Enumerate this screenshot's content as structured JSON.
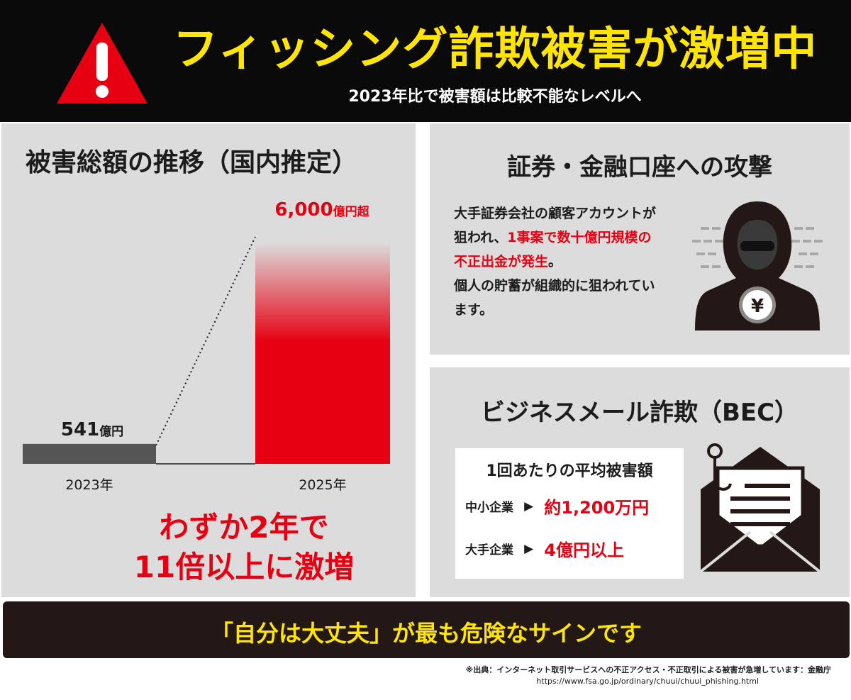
{
  "header": {
    "title": "フィッシング詐欺被害が激増中",
    "subtitle": "2023年比で被害額は比較不能なレベルへ",
    "warning_icon": "warning-triangle-icon"
  },
  "left_panel": {
    "title": "被害総額の推移（国内推定）",
    "growth_line1": "わずか2年で",
    "growth_line2": "11倍以上に激増"
  },
  "chart_data": {
    "type": "bar",
    "categories": [
      "2023年",
      "2025年"
    ],
    "values": [
      541,
      6000
    ],
    "value_labels": [
      {
        "number": "541",
        "unit": "億円"
      },
      {
        "number": "6,000",
        "unit": "億円超"
      }
    ],
    "colors": [
      "#555555",
      "#e60012"
    ],
    "title": "被害総額の推移（国内推定）"
  },
  "right_top": {
    "title": "証券・金融口座への攻撃",
    "line1": "大手証券会社の顧客アカウントが",
    "line2_pre": "狙われ、",
    "line2_red": "1事案で数十億円規模の",
    "line3_red": "不正出金が発生",
    "line3_post": "。",
    "line4": "個人の貯蓄が組織的に狙われてい",
    "line5": "ます。",
    "icon": "hacker-icon",
    "yen_symbol": "¥"
  },
  "right_bottom": {
    "title": "ビジネスメール詐欺（BEC）",
    "card_title": "1回あたりの平均被害額",
    "rows": [
      {
        "label": "中小企業",
        "arrow": "▶",
        "value": "約1,200万円"
      },
      {
        "label": "大手企業",
        "arrow": "▶",
        "value": "4億円以上"
      }
    ],
    "icon": "phishing-envelope-icon"
  },
  "banner": {
    "text": "「自分は大丈夫」が最も危険なサインです"
  },
  "source": {
    "line1": "※出典：インターネット取引サービスへの不正アクセス・不正取引による被害が急増しています：金融庁",
    "line2": "https://www.fsa.go.jp/ordinary/chuui/chuui_phishing.html"
  },
  "colors": {
    "header_bg": "#0a0a0a",
    "title_yellow": "#ffe500",
    "accent_red": "#e60012",
    "panel_gray": "#dcdcdc",
    "banner_bg": "#231815"
  }
}
